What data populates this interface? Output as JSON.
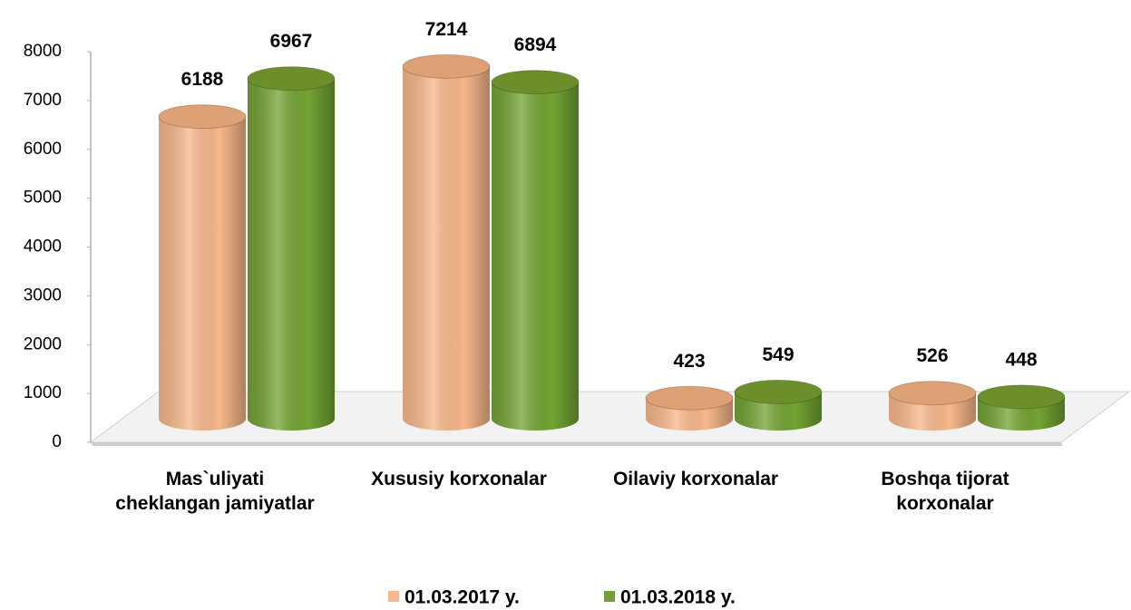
{
  "chart_data": {
    "type": "bar3d",
    "categories": [
      "Mas`uliyati cheklangan jamiyatlar",
      "Xususiy korxonalar",
      "Oilaviy korxonalar",
      "Boshqa tijorat korxonalar"
    ],
    "series": [
      {
        "name": "01.03.2017 y.",
        "color": "#f7b78a",
        "values": [
          6188,
          7214,
          423,
          526
        ]
      },
      {
        "name": "01.03.2018 y.",
        "color": "#72a233",
        "values": [
          6967,
          6894,
          549,
          448
        ]
      }
    ],
    "ylim": [
      0,
      8000
    ],
    "yticks": [
      0,
      1000,
      2000,
      3000,
      4000,
      5000,
      6000,
      7000,
      8000
    ],
    "legend": "bottom"
  }
}
